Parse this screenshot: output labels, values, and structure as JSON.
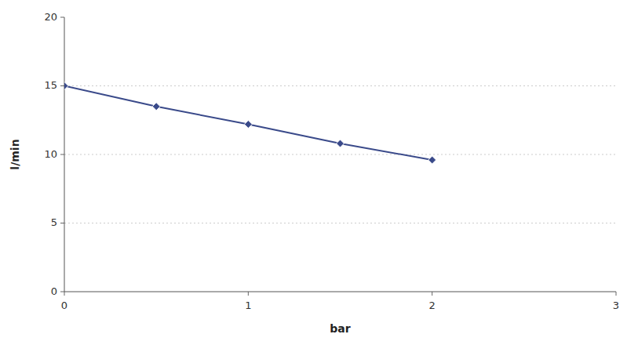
{
  "chart_data": {
    "type": "line",
    "x": [
      0,
      0.5,
      1.0,
      1.5,
      2.0
    ],
    "values": [
      15.0,
      13.5,
      12.2,
      10.8,
      9.6
    ],
    "color": "#3A4A8A",
    "marker": "diamond",
    "xlabel": "bar",
    "ylabel": "l/min",
    "xlim": [
      0,
      3
    ],
    "ylim": [
      0,
      20
    ],
    "xticks": [
      0,
      1,
      2,
      3
    ],
    "yticks": [
      0,
      5,
      10,
      15,
      20
    ],
    "grid": true
  }
}
